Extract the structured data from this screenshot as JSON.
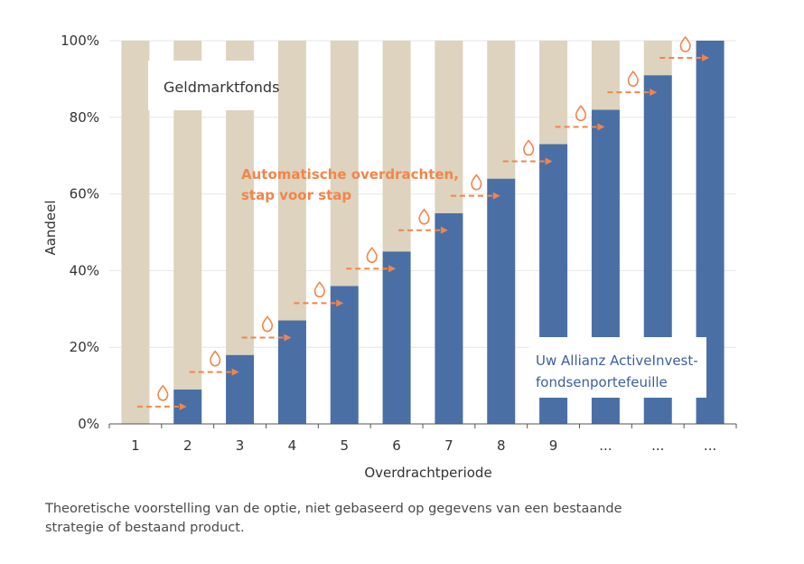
{
  "chart_data": {
    "type": "bar",
    "stacked": true,
    "normalized_percent": true,
    "categories": [
      "1",
      "2",
      "3",
      "4",
      "5",
      "6",
      "7",
      "8",
      "9",
      "...",
      "...",
      "..."
    ],
    "series": [
      {
        "name": "Uw Allianz ActiveInvest-fondsenportefeuille",
        "values": [
          0,
          9,
          18,
          27,
          36,
          45,
          55,
          64,
          73,
          82,
          91,
          100
        ],
        "color": "#4a6fa5"
      },
      {
        "name": "Geldmarktfonds",
        "values": [
          100,
          91,
          82,
          73,
          64,
          55,
          45,
          36,
          27,
          18,
          9,
          0
        ],
        "color": "#ddd3be"
      }
    ],
    "xlabel": "Overdrachtperiode",
    "ylabel": "Aandeel",
    "ylim": [
      0,
      100
    ],
    "yticks": [
      "0%",
      "20%",
      "40%",
      "60%",
      "80%",
      "100%"
    ],
    "annotations": {
      "geldmarktfonds": "Geldmarktfonds",
      "transfers_line1": "Automatische overdrachten,",
      "transfers_line2": "stap voor stap",
      "portfolio_line1": "Uw Allianz ActiveInvest-",
      "portfolio_line2": "fondsenportefeuille"
    },
    "arrow_color": "#f2854a",
    "drop_icon": "water-drop-icon"
  },
  "caption": {
    "line1": "Theoretische voorstelling van de optie, niet gebaseerd op gegevens van een bestaande",
    "line2": "strategie of bestaand product."
  }
}
